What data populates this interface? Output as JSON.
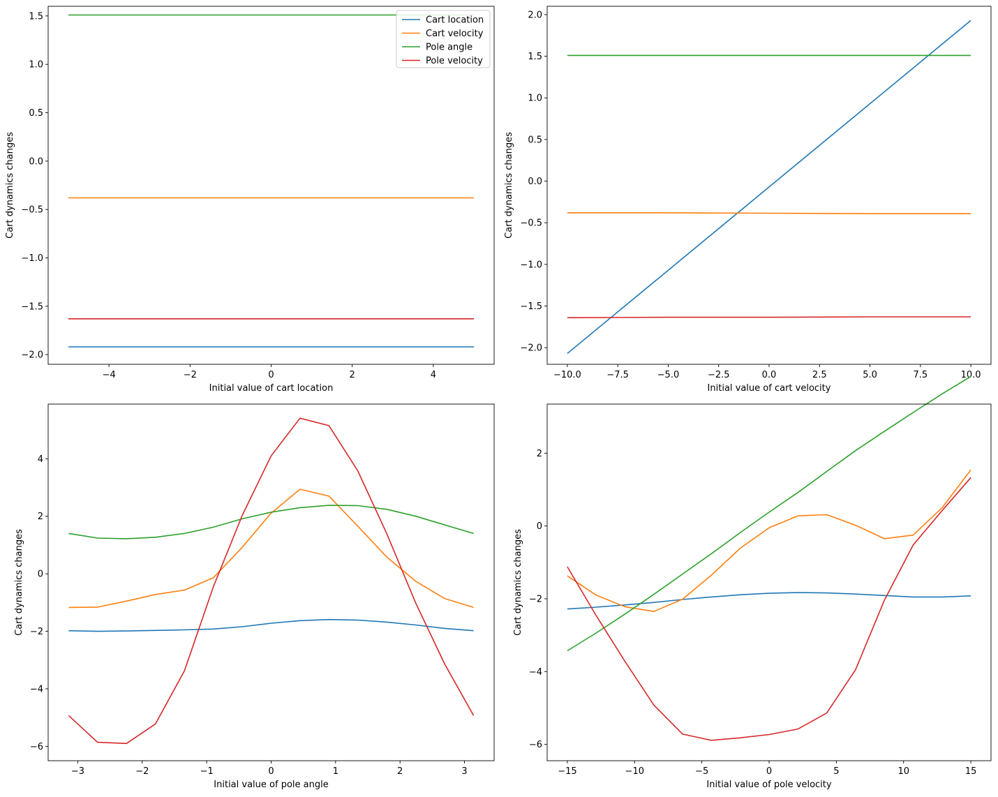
{
  "chart_data": [
    {
      "type": "line",
      "title": "",
      "xlabel": "Initial value of cart location",
      "ylabel": "Cart dynamics changes",
      "xlim": [
        -5.5,
        5.5
      ],
      "ylim": [
        -2.1,
        1.6
      ],
      "xticks": [
        -4,
        -2,
        0,
        2,
        4
      ],
      "xtick_labels": [
        "−4",
        "−2",
        "0",
        "2",
        "4"
      ],
      "yticks": [
        -2.0,
        -1.5,
        -1.0,
        -0.5,
        0.0,
        0.5,
        1.0,
        1.5
      ],
      "ytick_labels": [
        "−2.0",
        "−1.5",
        "−1.0",
        "−0.5",
        "0.0",
        "0.5",
        "1.0",
        "1.5"
      ],
      "legend": {
        "show": true,
        "position": "top-right"
      },
      "grid": false,
      "x": [
        -5,
        -4,
        -3,
        -2,
        -1,
        0,
        1,
        2,
        3,
        4,
        5
      ],
      "series": [
        {
          "name": "Cart location",
          "color": "#1f77b4",
          "values": [
            -1.92,
            -1.92,
            -1.92,
            -1.92,
            -1.92,
            -1.92,
            -1.92,
            -1.92,
            -1.92,
            -1.92,
            -1.92
          ]
        },
        {
          "name": "Cart velocity",
          "color": "#ff7f0e",
          "values": [
            -0.38,
            -0.38,
            -0.38,
            -0.38,
            -0.38,
            -0.38,
            -0.38,
            -0.38,
            -0.38,
            -0.38,
            -0.38
          ]
        },
        {
          "name": "Pole angle",
          "color": "#2ca02c",
          "values": [
            1.51,
            1.51,
            1.51,
            1.51,
            1.51,
            1.51,
            1.51,
            1.51,
            1.51,
            1.51,
            1.51
          ]
        },
        {
          "name": "Pole velocity",
          "color": "#d62728",
          "values": [
            -1.63,
            -1.63,
            -1.63,
            -1.63,
            -1.63,
            -1.63,
            -1.63,
            -1.63,
            -1.63,
            -1.63,
            -1.63
          ]
        }
      ]
    },
    {
      "type": "line",
      "title": "",
      "xlabel": "Initial value of cart velocity",
      "ylabel": "Cart dynamics changes",
      "xlim": [
        -11,
        11
      ],
      "ylim": [
        -2.2,
        2.1
      ],
      "xticks": [
        -10,
        -7.5,
        -5,
        -2.5,
        0,
        2.5,
        5,
        7.5,
        10
      ],
      "xtick_labels": [
        "−10.0",
        "−7.5",
        "−5.0",
        "−2.5",
        "0.0",
        "2.5",
        "5.0",
        "7.5",
        "10.0"
      ],
      "yticks": [
        -2.0,
        -1.5,
        -1.0,
        -0.5,
        0.0,
        0.5,
        1.0,
        1.5,
        2.0
      ],
      "ytick_labels": [
        "−2.0",
        "−1.5",
        "−1.0",
        "−0.5",
        "0.0",
        "0.5",
        "1.0",
        "1.5",
        "2.0"
      ],
      "legend": {
        "show": false
      },
      "grid": false,
      "x": [
        -10,
        -5,
        0,
        5,
        10
      ],
      "series": [
        {
          "color": "#1f77b4",
          "values": [
            -2.07,
            -1.07,
            -0.07,
            0.93,
            1.93
          ]
        },
        {
          "color": "#ff7f0e",
          "values": [
            -0.38,
            -0.38,
            -0.385,
            -0.39,
            -0.39
          ]
        },
        {
          "color": "#2ca02c",
          "values": [
            1.51,
            1.51,
            1.51,
            1.51,
            1.51
          ]
        },
        {
          "color": "#d62728",
          "values": [
            -1.64,
            -1.635,
            -1.635,
            -1.63,
            -1.63
          ]
        }
      ]
    },
    {
      "type": "line",
      "title": "",
      "xlabel": "Initial value of pole angle",
      "ylabel": "Cart dynamics changes",
      "xlim": [
        -3.46,
        3.46
      ],
      "ylim": [
        -6.5,
        5.9
      ],
      "xticks": [
        -3,
        -2,
        -1,
        0,
        1,
        2,
        3
      ],
      "xtick_labels": [
        "−3",
        "−2",
        "−1",
        "0",
        "1",
        "2",
        "3"
      ],
      "yticks": [
        -6,
        -4,
        -2,
        0,
        2,
        4
      ],
      "ytick_labels": [
        "−6",
        "−4",
        "−2",
        "0",
        "2",
        "4"
      ],
      "legend": {
        "show": false
      },
      "grid": false,
      "x": [
        -3.1416,
        -2.6928,
        -2.244,
        -1.7952,
        -1.3464,
        -0.8976,
        -0.4488,
        0.0,
        0.4488,
        0.8976,
        1.3464,
        1.7952,
        2.244,
        2.6928,
        3.1416
      ],
      "series": [
        {
          "color": "#1f77b4",
          "values": [
            -1.98,
            -2.0,
            -1.99,
            -1.97,
            -1.95,
            -1.92,
            -1.84,
            -1.72,
            -1.63,
            -1.59,
            -1.61,
            -1.68,
            -1.78,
            -1.9,
            -1.98
          ]
        },
        {
          "color": "#ff7f0e",
          "values": [
            -1.17,
            -1.16,
            -0.95,
            -0.72,
            -0.57,
            -0.14,
            0.92,
            2.11,
            2.94,
            2.7,
            1.65,
            0.58,
            -0.26,
            -0.86,
            -1.17
          ]
        },
        {
          "color": "#2ca02c",
          "values": [
            1.4,
            1.24,
            1.22,
            1.27,
            1.4,
            1.62,
            1.91,
            2.14,
            2.3,
            2.38,
            2.37,
            2.24,
            2.0,
            1.7,
            1.4
          ]
        },
        {
          "color": "#d62728",
          "values": [
            -4.93,
            -5.86,
            -5.9,
            -5.22,
            -3.38,
            -0.46,
            2.03,
            4.1,
            5.41,
            5.15,
            3.57,
            1.39,
            -1.02,
            -3.14,
            -4.93
          ]
        }
      ]
    },
    {
      "type": "line",
      "title": "",
      "xlabel": "Initial value of pole velocity",
      "ylabel": "Cart dynamics changes",
      "xlim": [
        -16.5,
        16.5
      ],
      "ylim": [
        -6.45,
        3.35
      ],
      "xticks": [
        -15,
        -10,
        -5,
        0,
        5,
        10,
        15
      ],
      "xtick_labels": [
        "−15",
        "−10",
        "−5",
        "0",
        "5",
        "10",
        "15"
      ],
      "yticks": [
        -6,
        -4,
        -2,
        0,
        2
      ],
      "ytick_labels": [
        "−6",
        "−4",
        "−2",
        "0",
        "2"
      ],
      "legend": {
        "show": false
      },
      "grid": false,
      "x": [
        -15.0,
        -12.857,
        -10.714,
        -8.571,
        -6.429,
        -4.286,
        -2.143,
        0.0,
        2.143,
        4.286,
        6.429,
        8.571,
        10.714,
        12.857,
        15.0
      ],
      "series": [
        {
          "color": "#1f77b4",
          "values": [
            -2.28,
            -2.23,
            -2.17,
            -2.1,
            -2.02,
            -1.95,
            -1.89,
            -1.85,
            -1.83,
            -1.84,
            -1.87,
            -1.91,
            -1.95,
            -1.95,
            -1.92
          ]
        },
        {
          "color": "#ff7f0e",
          "values": [
            -1.37,
            -1.9,
            -2.22,
            -2.35,
            -2.01,
            -1.35,
            -0.61,
            -0.05,
            0.28,
            0.31,
            0.02,
            -0.35,
            -0.25,
            0.5,
            1.54
          ]
        },
        {
          "color": "#2ca02c",
          "values": [
            -3.43,
            -2.94,
            -2.42,
            -1.88,
            -1.32,
            -0.76,
            -0.18,
            0.38,
            0.92,
            1.5,
            2.07,
            2.6,
            3.12,
            3.63,
            4.11
          ]
        },
        {
          "color": "#d62728",
          "values": [
            -1.12,
            -2.46,
            -3.72,
            -4.92,
            -5.72,
            -5.89,
            -5.82,
            -5.73,
            -5.58,
            -5.14,
            -3.95,
            -2.04,
            -0.52,
            0.42,
            1.33
          ]
        }
      ]
    }
  ]
}
